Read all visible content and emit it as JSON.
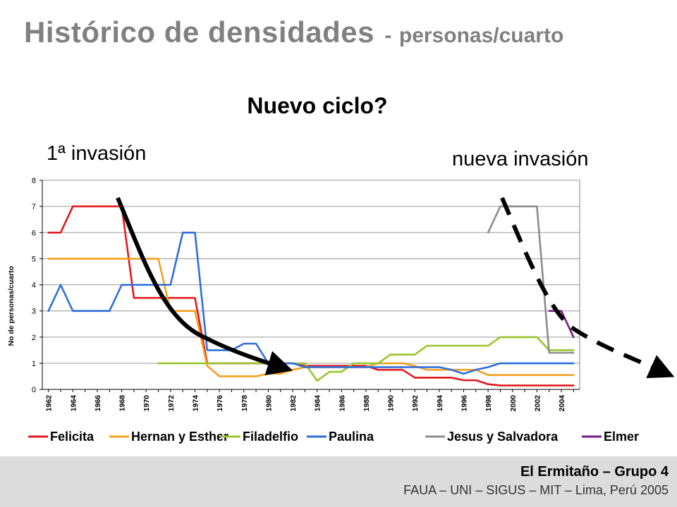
{
  "slide": {
    "title": "Histórico de densidades",
    "title_sep": "-",
    "title_unit": "personas/cuarto",
    "subtitle": "Nuevo ciclo?",
    "annotation_left": "1ª invasión",
    "annotation_right": "nueva invasión"
  },
  "footer": {
    "line1": "El Ermitaño – Grupo 4",
    "line2": "FAUA – UNI – SIGUS – MIT – Lima, Perú 2005"
  },
  "chart_data": {
    "type": "line",
    "title": "",
    "xlabel": "",
    "ylabel": "No de personas/cuarto",
    "ylim": [
      0,
      8
    ],
    "yticks": [
      0,
      1,
      2,
      3,
      4,
      5,
      6,
      7,
      8
    ],
    "xlim": [
      1961.5,
      2005.5
    ],
    "xticks": [
      1962,
      1964,
      1966,
      1968,
      1970,
      1972,
      1974,
      1976,
      1978,
      1980,
      1982,
      1984,
      1986,
      1988,
      1990,
      1992,
      1994,
      1996,
      1998,
      2000,
      2002,
      2004
    ],
    "grid": "horizontal",
    "legend": "bottom",
    "series": [
      {
        "name": "Felicita",
        "color": "#e0191e",
        "x": [
          1962,
          1963,
          1964,
          1965,
          1966,
          1967,
          1968,
          1969,
          1970,
          1971,
          1972,
          1973,
          1974,
          1975,
          1976,
          1977,
          1978,
          1979,
          1980,
          1981,
          1982,
          1983,
          1984,
          1985,
          1986,
          1987,
          1988,
          1989,
          1990,
          1991,
          1992,
          1993,
          1994,
          1995,
          1996,
          1997,
          1998,
          1999,
          2000,
          2001,
          2002,
          2003,
          2004,
          2005
        ],
        "values": [
          6,
          6,
          7,
          7,
          7,
          7,
          7,
          3.5,
          3.5,
          3.5,
          3.5,
          3.5,
          3.5,
          1,
          1,
          1,
          1,
          1,
          1,
          1,
          1,
          0.9,
          0.9,
          0.9,
          0.9,
          0.9,
          0.9,
          0.75,
          0.75,
          0.75,
          0.45,
          0.45,
          0.45,
          0.45,
          0.35,
          0.35,
          0.2,
          0.15,
          0.15,
          0.15,
          0.15,
          0.15,
          0.15,
          0.15
        ]
      },
      {
        "name": "Hernan y Esther",
        "color": "#f5a01e",
        "x": [
          1962,
          1963,
          1964,
          1965,
          1966,
          1967,
          1968,
          1969,
          1970,
          1971,
          1972,
          1973,
          1974,
          1975,
          1976,
          1977,
          1978,
          1979,
          1980,
          1981,
          1982,
          1983,
          1984,
          1985,
          1986,
          1987,
          1988,
          1989,
          1990,
          1991,
          1992,
          1993,
          1994,
          1995,
          1996,
          1997,
          1998,
          1999,
          2000,
          2001,
          2002,
          2003,
          2004,
          2005
        ],
        "values": [
          5,
          5,
          5,
          5,
          5,
          5,
          5,
          5,
          5,
          5,
          3,
          3,
          3,
          0.9,
          0.5,
          0.5,
          0.5,
          0.5,
          0.6,
          0.6,
          0.75,
          0.85,
          0.85,
          0.85,
          0.85,
          0.85,
          0.85,
          1,
          1,
          1,
          0.9,
          0.75,
          0.75,
          0.75,
          0.75,
          0.75,
          0.55,
          0.55,
          0.55,
          0.55,
          0.55,
          0.55,
          0.55,
          0.55
        ]
      },
      {
        "name": "Filadelfio",
        "color": "#9cc52c",
        "x": [
          1971,
          1972,
          1973,
          1974,
          1975,
          1976,
          1977,
          1978,
          1979,
          1980,
          1981,
          1982,
          1983,
          1984,
          1985,
          1986,
          1987,
          1988,
          1989,
          1990,
          1991,
          1992,
          1993,
          1994,
          1995,
          1996,
          1997,
          1998,
          1999,
          2000,
          2001,
          2002,
          2003,
          2004,
          2005
        ],
        "values": [
          1,
          1,
          1,
          1,
          1,
          1,
          1,
          1,
          1,
          1,
          1,
          1,
          1,
          0.33,
          0.67,
          0.67,
          1,
          1,
          1,
          1.33,
          1.33,
          1.33,
          1.67,
          1.67,
          1.67,
          1.67,
          1.67,
          1.67,
          2,
          2,
          2,
          2,
          1.5,
          1.5,
          1.5
        ]
      },
      {
        "name": "Paulina",
        "color": "#2f6fdb",
        "x": [
          1962,
          1963,
          1964,
          1965,
          1966,
          1967,
          1968,
          1969,
          1970,
          1971,
          1972,
          1973,
          1974,
          1975,
          1976,
          1977,
          1978,
          1979,
          1980,
          1981,
          1982,
          1983,
          1984,
          1985,
          1986,
          1987,
          1988,
          1989,
          1990,
          1991,
          1992,
          1993,
          1994,
          1995,
          1996,
          1997,
          1998,
          1999,
          2000,
          2001,
          2002,
          2003,
          2004,
          2005
        ],
        "values": [
          3,
          4,
          3,
          3,
          3,
          3,
          4,
          4,
          4,
          4,
          4,
          6,
          6,
          1.5,
          1.5,
          1.5,
          1.75,
          1.75,
          1,
          1,
          1,
          0.85,
          0.85,
          0.85,
          0.85,
          0.85,
          0.85,
          0.85,
          0.85,
          0.85,
          0.85,
          0.85,
          0.85,
          0.75,
          0.6,
          0.75,
          0.85,
          1,
          1,
          1,
          1,
          1,
          1,
          1
        ]
      },
      {
        "name": "Jesus y Salvadora",
        "color": "#8c8c8c",
        "x": [
          1998,
          1999,
          2000,
          2001,
          2002,
          2003,
          2004,
          2005
        ],
        "values": [
          6,
          7,
          7,
          7,
          7,
          1.4,
          1.4,
          1.4
        ]
      },
      {
        "name": "Elmer",
        "color": "#7a1a86",
        "x": [
          2003,
          2004,
          2005
        ],
        "values": [
          3,
          3,
          2
        ]
      }
    ]
  }
}
